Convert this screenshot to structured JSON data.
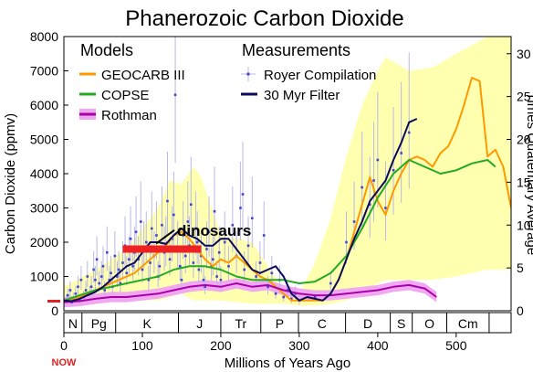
{
  "chart_data": {
    "type": "line",
    "title": "Phanerozoic Carbon Dioxide",
    "xlabel": "Millions of Years Ago",
    "ylabel": "Carbon Dioxide (ppmv)",
    "y2label": "Times Quaternary Average",
    "now_label": "NOW",
    "xlim": [
      0,
      570
    ],
    "ylim": [
      0,
      8000
    ],
    "y2lim": [
      0,
      32
    ],
    "x_ticks": [
      0,
      100,
      200,
      300,
      400,
      500
    ],
    "y_ticks": [
      0,
      1000,
      2000,
      3000,
      4000,
      5000,
      6000,
      7000,
      8000
    ],
    "y2_ticks": [
      0,
      5,
      10,
      15,
      20,
      25,
      30
    ],
    "grid": false,
    "legend": {
      "models_heading": "Models",
      "measurements_heading": "Measurements",
      "entries": [
        "GEOCARB III",
        "COPSE",
        "Rothman",
        "Royer Compilation",
        "30 Myr Filter"
      ]
    },
    "periods": [
      {
        "label": "N",
        "start": 0,
        "end": 23
      },
      {
        "label": "Pg",
        "start": 23,
        "end": 66
      },
      {
        "label": "K",
        "start": 66,
        "end": 146
      },
      {
        "label": "J",
        "start": 146,
        "end": 200
      },
      {
        "label": "Tr",
        "start": 200,
        "end": 251
      },
      {
        "label": "P",
        "start": 251,
        "end": 299
      },
      {
        "label": "C",
        "start": 299,
        "end": 359
      },
      {
        "label": "D",
        "start": 359,
        "end": 416
      },
      {
        "label": "S",
        "start": 416,
        "end": 444
      },
      {
        "label": "O",
        "start": 444,
        "end": 488
      },
      {
        "label": "Cm",
        "start": 488,
        "end": 542
      }
    ],
    "annotations": [
      {
        "text": "dinosaurs",
        "range": [
          75,
          175
        ],
        "y": 1800,
        "label_x": 135,
        "label_y": 2300
      }
    ],
    "present_level": {
      "x_range": [
        -20,
        0
      ],
      "y": 280
    },
    "geocarb_uncertainty": {
      "x": [
        0,
        40,
        80,
        120,
        135,
        150,
        165,
        175,
        200,
        240,
        280,
        300,
        320,
        340,
        360,
        380,
        400,
        410,
        440,
        470,
        500,
        540,
        570
      ],
      "upper": [
        700,
        1200,
        1800,
        3000,
        3800,
        3700,
        4200,
        3900,
        2200,
        2000,
        600,
        500,
        1400,
        2700,
        4500,
        6000,
        7000,
        7400,
        7000,
        7100,
        7500,
        8000,
        8000
      ],
      "lower": [
        200,
        300,
        300,
        300,
        400,
        500,
        300,
        300,
        300,
        200,
        200,
        150,
        150,
        200,
        300,
        500,
        800,
        900,
        900,
        900,
        1000,
        1200,
        1200
      ]
    },
    "series": [
      {
        "name": "GEOCARB III",
        "color": "#ff9900",
        "x": [
          0,
          10,
          20,
          30,
          40,
          50,
          60,
          70,
          80,
          90,
          100,
          110,
          120,
          130,
          140,
          150,
          160,
          170,
          180,
          190,
          200,
          210,
          220,
          230,
          240,
          250,
          260,
          270,
          280,
          290,
          300,
          310,
          320,
          330,
          340,
          350,
          360,
          370,
          380,
          390,
          400,
          410,
          420,
          430,
          440,
          450,
          460,
          470,
          480,
          490,
          500,
          510,
          520,
          530,
          540,
          550,
          560,
          570
        ],
        "y": [
          300,
          350,
          400,
          500,
          600,
          700,
          800,
          900,
          1000,
          1100,
          1300,
          1500,
          1700,
          1900,
          2200,
          2300,
          2100,
          1800,
          1500,
          1300,
          1500,
          1400,
          1600,
          1400,
          1200,
          1000,
          900,
          700,
          500,
          300,
          300,
          300,
          300,
          300,
          500,
          900,
          1500,
          2300,
          3100,
          3900,
          3200,
          2800,
          3500,
          4000,
          4400,
          4500,
          4400,
          4200,
          4600,
          4800,
          5300,
          6000,
          6800,
          6700,
          4500,
          4700,
          4200,
          3000
        ]
      },
      {
        "name": "COPSE",
        "color": "#22aa22",
        "x": [
          0,
          20,
          40,
          60,
          80,
          100,
          120,
          140,
          160,
          180,
          200,
          220,
          240,
          260,
          280,
          300,
          320,
          340,
          360,
          380,
          400,
          420,
          440,
          460,
          480,
          500,
          520,
          540,
          550
        ],
        "y": [
          300,
          450,
          600,
          700,
          800,
          900,
          1000,
          1200,
          1300,
          1300,
          1200,
          1000,
          900,
          900,
          900,
          800,
          850,
          1100,
          1600,
          2400,
          3300,
          4000,
          4400,
          4200,
          4000,
          4100,
          4300,
          4400,
          4200
        ]
      },
      {
        "name": "Rothman",
        "color": "#aa00aa",
        "x": [
          0,
          20,
          40,
          60,
          80,
          100,
          120,
          140,
          160,
          180,
          200,
          220,
          240,
          260,
          280,
          300,
          320,
          340,
          360,
          380,
          400,
          420,
          440,
          460,
          475
        ],
        "y": [
          250,
          280,
          350,
          400,
          400,
          450,
          500,
          600,
          700,
          750,
          700,
          800,
          700,
          750,
          600,
          500,
          450,
          450,
          500,
          550,
          600,
          700,
          750,
          650,
          400
        ]
      },
      {
        "name": "30 Myr Filter",
        "color": "#0a0a5e",
        "x": [
          0,
          10,
          20,
          30,
          40,
          50,
          60,
          70,
          80,
          90,
          100,
          110,
          120,
          130,
          140,
          150,
          160,
          170,
          180,
          190,
          200,
          210,
          220,
          230,
          240,
          250,
          260,
          270,
          280,
          290,
          300,
          310,
          320,
          330,
          340,
          350,
          360,
          370,
          380,
          390,
          400,
          410,
          420,
          430,
          440,
          450
        ],
        "y": [
          300,
          280,
          350,
          450,
          550,
          700,
          900,
          1100,
          1300,
          1400,
          1700,
          2000,
          2000,
          1950,
          2200,
          2400,
          2200,
          2100,
          1900,
          1900,
          2100,
          2100,
          1800,
          1500,
          1200,
          1100,
          1200,
          1300,
          1000,
          500,
          300,
          400,
          350,
          300,
          500,
          900,
          1500,
          2100,
          2600,
          3200,
          3500,
          3800,
          4400,
          4900,
          5500,
          5600
        ]
      }
    ],
    "royer": {
      "name": "Royer Compilation",
      "color": "#4444cc",
      "points": [
        [
          3,
          300
        ],
        [
          5,
          450
        ],
        [
          8,
          600
        ],
        [
          10,
          250
        ],
        [
          12,
          350
        ],
        [
          15,
          500
        ],
        [
          18,
          700
        ],
        [
          20,
          300
        ],
        [
          22,
          900
        ],
        [
          25,
          400
        ],
        [
          28,
          600
        ],
        [
          30,
          1000
        ],
        [
          33,
          500
        ],
        [
          35,
          700
        ],
        [
          38,
          1200
        ],
        [
          40,
          900
        ],
        [
          42,
          1500
        ],
        [
          45,
          800
        ],
        [
          48,
          1000
        ],
        [
          50,
          1300
        ],
        [
          52,
          600
        ],
        [
          55,
          1700
        ],
        [
          58,
          900
        ],
        [
          60,
          1100
        ],
        [
          62,
          700
        ],
        [
          65,
          1600
        ],
        [
          68,
          1000
        ],
        [
          70,
          1200
        ],
        [
          72,
          800
        ],
        [
          75,
          1400
        ],
        [
          78,
          1900
        ],
        [
          80,
          1100
        ],
        [
          83,
          1500
        ],
        [
          85,
          2100
        ],
        [
          88,
          1300
        ],
        [
          90,
          1700
        ],
        [
          92,
          2300
        ],
        [
          95,
          1500
        ],
        [
          98,
          2600
        ],
        [
          100,
          1200
        ],
        [
          102,
          1800
        ],
        [
          105,
          2000
        ],
        [
          108,
          900
        ],
        [
          110,
          1400
        ],
        [
          112,
          2400
        ],
        [
          115,
          1600
        ],
        [
          118,
          2200
        ],
        [
          120,
          1000
        ],
        [
          122,
          1300
        ],
        [
          125,
          2500
        ],
        [
          128,
          1700
        ],
        [
          130,
          1900
        ],
        [
          132,
          3200
        ],
        [
          135,
          1500
        ],
        [
          138,
          2100
        ],
        [
          140,
          2800
        ],
        [
          142,
          6300
        ],
        [
          145,
          1800
        ],
        [
          148,
          1300
        ],
        [
          150,
          900
        ],
        [
          152,
          2200
        ],
        [
          155,
          1600
        ],
        [
          158,
          2600
        ],
        [
          160,
          1900
        ],
        [
          162,
          3100
        ],
        [
          165,
          1400
        ],
        [
          168,
          2400
        ],
        [
          170,
          2000
        ],
        [
          172,
          1200
        ],
        [
          175,
          1600
        ],
        [
          178,
          900
        ],
        [
          180,
          700
        ],
        [
          182,
          1800
        ],
        [
          185,
          2300
        ],
        [
          188,
          1300
        ],
        [
          190,
          1500
        ],
        [
          192,
          2900
        ],
        [
          195,
          1000
        ],
        [
          198,
          1700
        ],
        [
          200,
          900
        ],
        [
          205,
          2000
        ],
        [
          210,
          1300
        ],
        [
          215,
          2500
        ],
        [
          220,
          1600
        ],
        [
          225,
          3000
        ],
        [
          228,
          3400
        ],
        [
          230,
          1200
        ],
        [
          235,
          1900
        ],
        [
          240,
          2700
        ],
        [
          245,
          1000
        ],
        [
          250,
          1400
        ],
        [
          255,
          2200
        ],
        [
          260,
          700
        ],
        [
          265,
          1100
        ],
        [
          270,
          500
        ],
        [
          275,
          900
        ],
        [
          280,
          400
        ],
        [
          285,
          600
        ],
        [
          290,
          350
        ],
        [
          295,
          500
        ],
        [
          300,
          300
        ],
        [
          320,
          400
        ],
        [
          340,
          800
        ],
        [
          360,
          2000
        ],
        [
          370,
          2600
        ],
        [
          380,
          3600
        ],
        [
          390,
          3100
        ],
        [
          395,
          3800
        ],
        [
          400,
          4400
        ],
        [
          410,
          3000
        ],
        [
          420,
          4100
        ],
        [
          430,
          4600
        ],
        [
          440,
          5200
        ]
      ]
    }
  }
}
